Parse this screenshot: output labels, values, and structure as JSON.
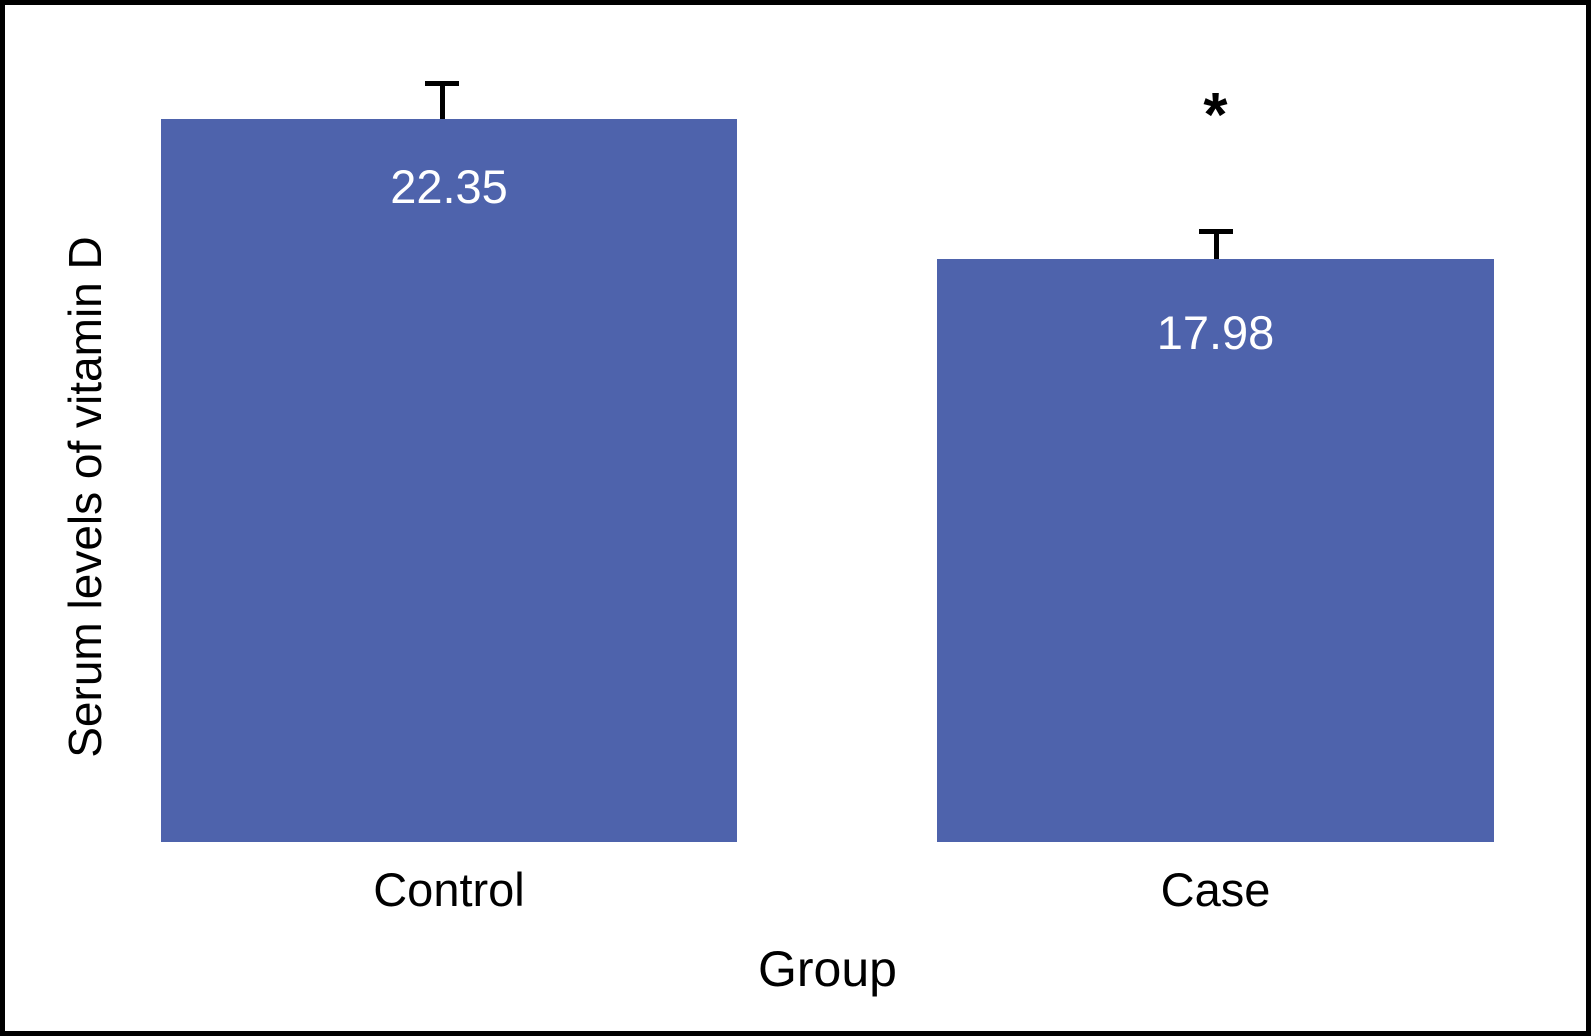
{
  "chart_data": {
    "type": "bar",
    "title": "",
    "categories": [
      "Control",
      "Case"
    ],
    "values": [
      22.35,
      17.98
    ],
    "value_labels": [
      "22.35",
      "17.98"
    ],
    "error_upper": [
      1.1,
      0.85
    ],
    "xlabel": "Group",
    "ylabel": "Serum levels of vitamin D",
    "ylim": [
      0,
      24
    ],
    "grid": false,
    "legend": "none",
    "bar_color": "#4e63ac",
    "value_label_color": "#ffffff",
    "significance_marker": "*",
    "significance_category": "Case"
  }
}
